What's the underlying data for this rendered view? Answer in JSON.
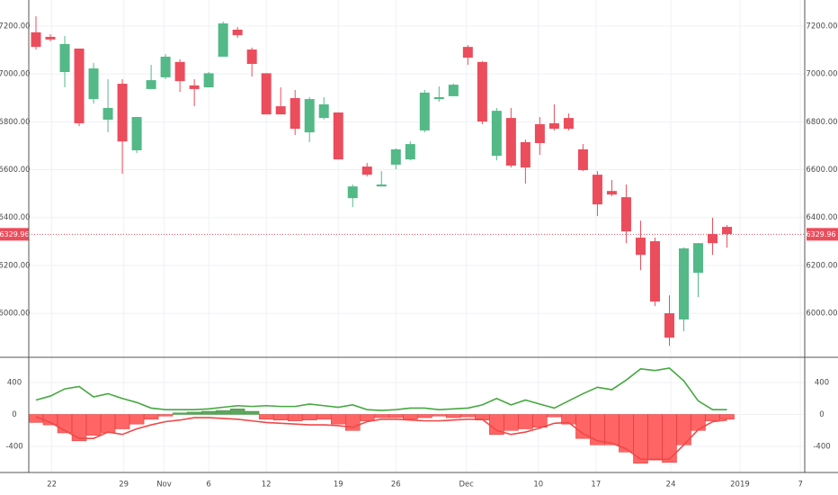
{
  "chart_data": [
    {
      "type": "candlestick",
      "x": [
        0,
        1,
        2,
        3,
        4,
        5,
        6,
        7,
        8,
        9,
        10,
        11,
        12,
        13,
        14,
        15,
        16,
        17,
        18,
        19,
        20,
        21,
        22,
        23,
        24,
        25,
        26,
        27,
        28,
        29,
        30,
        31,
        32,
        33,
        34,
        35,
        36,
        37,
        38,
        39,
        40,
        41,
        42,
        43,
        44,
        45,
        46,
        47,
        48
      ],
      "open": [
        7174,
        7155,
        7008,
        7106,
        6895,
        6809,
        6959,
        6681,
        6937,
        6986,
        7050,
        6952,
        6944,
        7072,
        7185,
        7102,
        7003,
        6865,
        6899,
        6756,
        6816,
        6839,
        6481,
        6613,
        6530,
        6621,
        6643,
        6764,
        6895,
        6907,
        7113,
        7050,
        6658,
        6816,
        6715,
        6790,
        6794,
        6816,
        6685,
        6579,
        6511,
        6485,
        6316,
        6301,
        6000,
        5974,
        6169,
        6331,
        6361
      ],
      "high": [
        7241,
        7166,
        7159,
        7106,
        7046,
        6978,
        6978,
        6820,
        7038,
        7083,
        7061,
        6978,
        7008,
        7219,
        7196,
        7110,
        7003,
        6944,
        6933,
        6903,
        6903,
        6839,
        6538,
        6628,
        6594,
        6689,
        6718,
        6933,
        6948,
        6959,
        7121,
        7054,
        6858,
        6858,
        6726,
        6820,
        6873,
        6835,
        6707,
        6594,
        6557,
        6538,
        6387,
        6316,
        6075,
        6275,
        6293,
        6399,
        6369
      ],
      "low": [
        7102,
        7136,
        6944,
        6782,
        6876,
        6756,
        6583,
        6670,
        6937,
        6978,
        6925,
        6865,
        6944,
        7072,
        7151,
        6989,
        6831,
        6831,
        6745,
        6715,
        6810,
        6643,
        6444,
        6572,
        6530,
        6602,
        6639,
        6756,
        6884,
        6907,
        7038,
        6790,
        6639,
        6609,
        6542,
        6662,
        6764,
        6764,
        6594,
        6406,
        6489,
        6293,
        6180,
        6030,
        5864,
        5925,
        6068,
        6244,
        6274
      ],
      "close": [
        7113,
        7144,
        7125,
        6794,
        7023,
        6858,
        6718,
        6820,
        6974,
        7072,
        6970,
        6937,
        7003,
        7211,
        7162,
        7042,
        6831,
        6831,
        6771,
        6895,
        6873,
        6643,
        6530,
        6579,
        6538,
        6685,
        6707,
        6922,
        6903,
        6955,
        7068,
        6801,
        6846,
        6617,
        6609,
        6711,
        6771,
        6771,
        6598,
        6455,
        6496,
        6342,
        6244,
        6049,
        5898,
        6271,
        6293,
        6293,
        6331
      ],
      "up_color": "#53b987",
      "down_color": "#eb4d5c",
      "xlim": [
        -0.5,
        53.4
      ],
      "xticks": [
        {
          "value": 1.1,
          "label": "22"
        },
        {
          "value": 6.1,
          "label": "29"
        },
        {
          "value": 8.9,
          "label": "Nov"
        },
        {
          "value": 12,
          "label": "6"
        },
        {
          "value": 16,
          "label": "12"
        },
        {
          "value": 21,
          "label": "19"
        },
        {
          "value": 25,
          "label": "26"
        },
        {
          "value": 29.9,
          "label": "Dec"
        },
        {
          "value": 34.9,
          "label": "10"
        },
        {
          "value": 38.9,
          "label": "17"
        },
        {
          "value": 44.1,
          "label": "24"
        },
        {
          "value": 48.9,
          "label": "2019"
        },
        {
          "value": 53.1,
          "label": "7"
        }
      ],
      "ylim": [
        5816,
        7309
      ],
      "yticks": [
        {
          "value": 6000,
          "label": "6000.00"
        },
        {
          "value": 6200,
          "label": "6200.00"
        },
        {
          "value": 6400,
          "label": "6400.00"
        },
        {
          "value": 6600,
          "label": "6600.00"
        },
        {
          "value": 6800,
          "label": "6800.00"
        },
        {
          "value": 7000,
          "label": "7000.00"
        },
        {
          "value": 7200,
          "label": "7200.00"
        }
      ],
      "last_price": 6329.96,
      "grid": true
    },
    {
      "type": "oscillator",
      "x": [
        0,
        1,
        2,
        3,
        4,
        5,
        6,
        7,
        8,
        9,
        10,
        11,
        12,
        13,
        14,
        15,
        16,
        17,
        18,
        19,
        20,
        21,
        22,
        23,
        24,
        25,
        26,
        27,
        28,
        29,
        30,
        31,
        32,
        33,
        34,
        35,
        36,
        37,
        38,
        39,
        40,
        41,
        42,
        43,
        44,
        45,
        46,
        47,
        48
      ],
      "series": [
        {
          "type": "bar",
          "up_color": "#4c9a4a",
          "down_color": "#ff4a4a",
          "values": [
            -100,
            -130,
            -230,
            -330,
            -260,
            -230,
            -180,
            -120,
            -60,
            -20,
            20,
            30,
            40,
            50,
            70,
            40,
            -60,
            -70,
            -80,
            -70,
            -60,
            -120,
            -200,
            -80,
            -40,
            -40,
            -60,
            -40,
            -20,
            -40,
            -30,
            -70,
            -250,
            -200,
            -180,
            -160,
            -30,
            -120,
            -300,
            -380,
            -380,
            -470,
            -610,
            -570,
            -600,
            -380,
            -200,
            -80,
            -60
          ]
        },
        {
          "type": "line",
          "color": "#f04848",
          "values": [
            -30,
            -100,
            -200,
            -300,
            -300,
            -220,
            -250,
            -180,
            -130,
            -90,
            -70,
            -40,
            -40,
            -50,
            -60,
            -80,
            -100,
            -110,
            -120,
            -130,
            -130,
            -140,
            -160,
            -90,
            -60,
            -60,
            -70,
            -80,
            -80,
            -70,
            -60,
            -60,
            -200,
            -250,
            -220,
            -170,
            -110,
            -100,
            -240,
            -330,
            -360,
            -430,
            -560,
            -560,
            -560,
            -380,
            -190,
            -90,
            -70
          ]
        },
        {
          "type": "line",
          "color": "#45a840",
          "values": [
            180,
            230,
            320,
            350,
            220,
            260,
            200,
            150,
            80,
            60,
            60,
            60,
            70,
            90,
            110,
            100,
            110,
            100,
            100,
            130,
            110,
            90,
            120,
            60,
            50,
            60,
            80,
            80,
            60,
            70,
            80,
            120,
            200,
            120,
            180,
            130,
            80,
            170,
            260,
            340,
            310,
            430,
            570,
            550,
            580,
            420,
            170,
            60,
            60
          ]
        }
      ],
      "xlim": [
        -0.5,
        53.4
      ],
      "ylim": [
        -726,
        715
      ],
      "yticks": [
        -400,
        0,
        400
      ],
      "grid": true
    }
  ]
}
